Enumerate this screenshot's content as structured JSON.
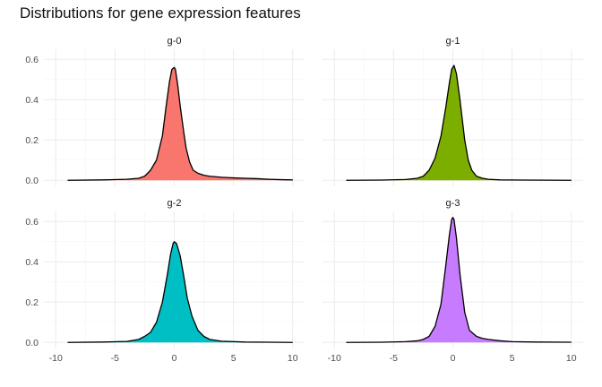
{
  "chart_data": {
    "type": "area",
    "title": "Distributions for gene expression features",
    "xlabel": "",
    "ylabel": "",
    "xlim": [
      -10,
      10
    ],
    "ylim": [
      0,
      0.6
    ],
    "x_ticks": [
      -10,
      -5,
      0,
      5,
      10
    ],
    "y_ticks": [
      0.0,
      0.2,
      0.4,
      0.6
    ],
    "x_tick_labels": [
      "-10",
      "-5",
      "0",
      "5",
      "10"
    ],
    "y_tick_labels": [
      "0.0",
      "0.2",
      "0.4",
      "0.6"
    ],
    "grid": true,
    "legend": "none",
    "panels": [
      {
        "name": "g-0",
        "color": "#F8766D",
        "points": [
          [
            -9.0,
            0.0
          ],
          [
            -6.0,
            0.002
          ],
          [
            -4.0,
            0.005
          ],
          [
            -3.0,
            0.01
          ],
          [
            -2.5,
            0.02
          ],
          [
            -2.0,
            0.05
          ],
          [
            -1.5,
            0.1
          ],
          [
            -1.0,
            0.22
          ],
          [
            -0.7,
            0.36
          ],
          [
            -0.4,
            0.49
          ],
          [
            -0.2,
            0.55
          ],
          [
            0.0,
            0.56
          ],
          [
            0.1,
            0.55
          ],
          [
            0.3,
            0.47
          ],
          [
            0.5,
            0.37
          ],
          [
            0.8,
            0.24
          ],
          [
            1.0,
            0.16
          ],
          [
            1.3,
            0.09
          ],
          [
            1.6,
            0.05
          ],
          [
            2.0,
            0.035
          ],
          [
            2.5,
            0.025
          ],
          [
            3.0,
            0.02
          ],
          [
            4.0,
            0.015
          ],
          [
            5.0,
            0.012
          ],
          [
            6.0,
            0.01
          ],
          [
            7.0,
            0.008
          ],
          [
            8.0,
            0.005
          ],
          [
            9.0,
            0.003
          ],
          [
            10.0,
            0.002
          ]
        ]
      },
      {
        "name": "g-1",
        "color": "#7CAE00",
        "points": [
          [
            -9.0,
            0.0
          ],
          [
            -6.0,
            0.001
          ],
          [
            -4.0,
            0.004
          ],
          [
            -3.0,
            0.01
          ],
          [
            -2.5,
            0.02
          ],
          [
            -2.0,
            0.05
          ],
          [
            -1.5,
            0.11
          ],
          [
            -1.0,
            0.22
          ],
          [
            -0.6,
            0.36
          ],
          [
            -0.3,
            0.48
          ],
          [
            -0.1,
            0.55
          ],
          [
            0.1,
            0.57
          ],
          [
            0.3,
            0.53
          ],
          [
            0.6,
            0.4
          ],
          [
            1.0,
            0.2
          ],
          [
            1.3,
            0.1
          ],
          [
            1.6,
            0.05
          ],
          [
            2.0,
            0.02
          ],
          [
            2.5,
            0.01
          ],
          [
            3.0,
            0.005
          ],
          [
            4.0,
            0.002
          ],
          [
            6.0,
            0.001
          ],
          [
            10.0,
            0.0
          ]
        ]
      },
      {
        "name": "g-2",
        "color": "#00BFC4",
        "points": [
          [
            -9.0,
            0.0
          ],
          [
            -6.0,
            0.002
          ],
          [
            -4.0,
            0.005
          ],
          [
            -3.0,
            0.015
          ],
          [
            -2.5,
            0.03
          ],
          [
            -2.0,
            0.05
          ],
          [
            -1.5,
            0.1
          ],
          [
            -1.0,
            0.2
          ],
          [
            -0.6,
            0.33
          ],
          [
            -0.3,
            0.44
          ],
          [
            -0.1,
            0.49
          ],
          [
            0.0,
            0.5
          ],
          [
            0.2,
            0.49
          ],
          [
            0.5,
            0.43
          ],
          [
            0.8,
            0.33
          ],
          [
            1.1,
            0.22
          ],
          [
            1.5,
            0.13
          ],
          [
            2.0,
            0.06
          ],
          [
            2.5,
            0.03
          ],
          [
            3.0,
            0.015
          ],
          [
            4.0,
            0.006
          ],
          [
            6.0,
            0.002
          ],
          [
            8.0,
            0.001
          ],
          [
            10.0,
            0.0
          ]
        ]
      },
      {
        "name": "g-3",
        "color": "#C77CFF",
        "points": [
          [
            -9.0,
            0.0
          ],
          [
            -6.0,
            0.001
          ],
          [
            -4.0,
            0.004
          ],
          [
            -3.0,
            0.008
          ],
          [
            -2.5,
            0.015
          ],
          [
            -2.0,
            0.03
          ],
          [
            -1.5,
            0.08
          ],
          [
            -1.0,
            0.19
          ],
          [
            -0.6,
            0.38
          ],
          [
            -0.3,
            0.53
          ],
          [
            -0.1,
            0.61
          ],
          [
            0.0,
            0.62
          ],
          [
            0.1,
            0.61
          ],
          [
            0.3,
            0.52
          ],
          [
            0.6,
            0.34
          ],
          [
            1.0,
            0.15
          ],
          [
            1.4,
            0.06
          ],
          [
            2.0,
            0.03
          ],
          [
            2.5,
            0.02
          ],
          [
            3.0,
            0.015
          ],
          [
            4.0,
            0.008
          ],
          [
            5.0,
            0.004
          ],
          [
            7.0,
            0.002
          ],
          [
            10.0,
            0.001
          ]
        ]
      }
    ]
  }
}
